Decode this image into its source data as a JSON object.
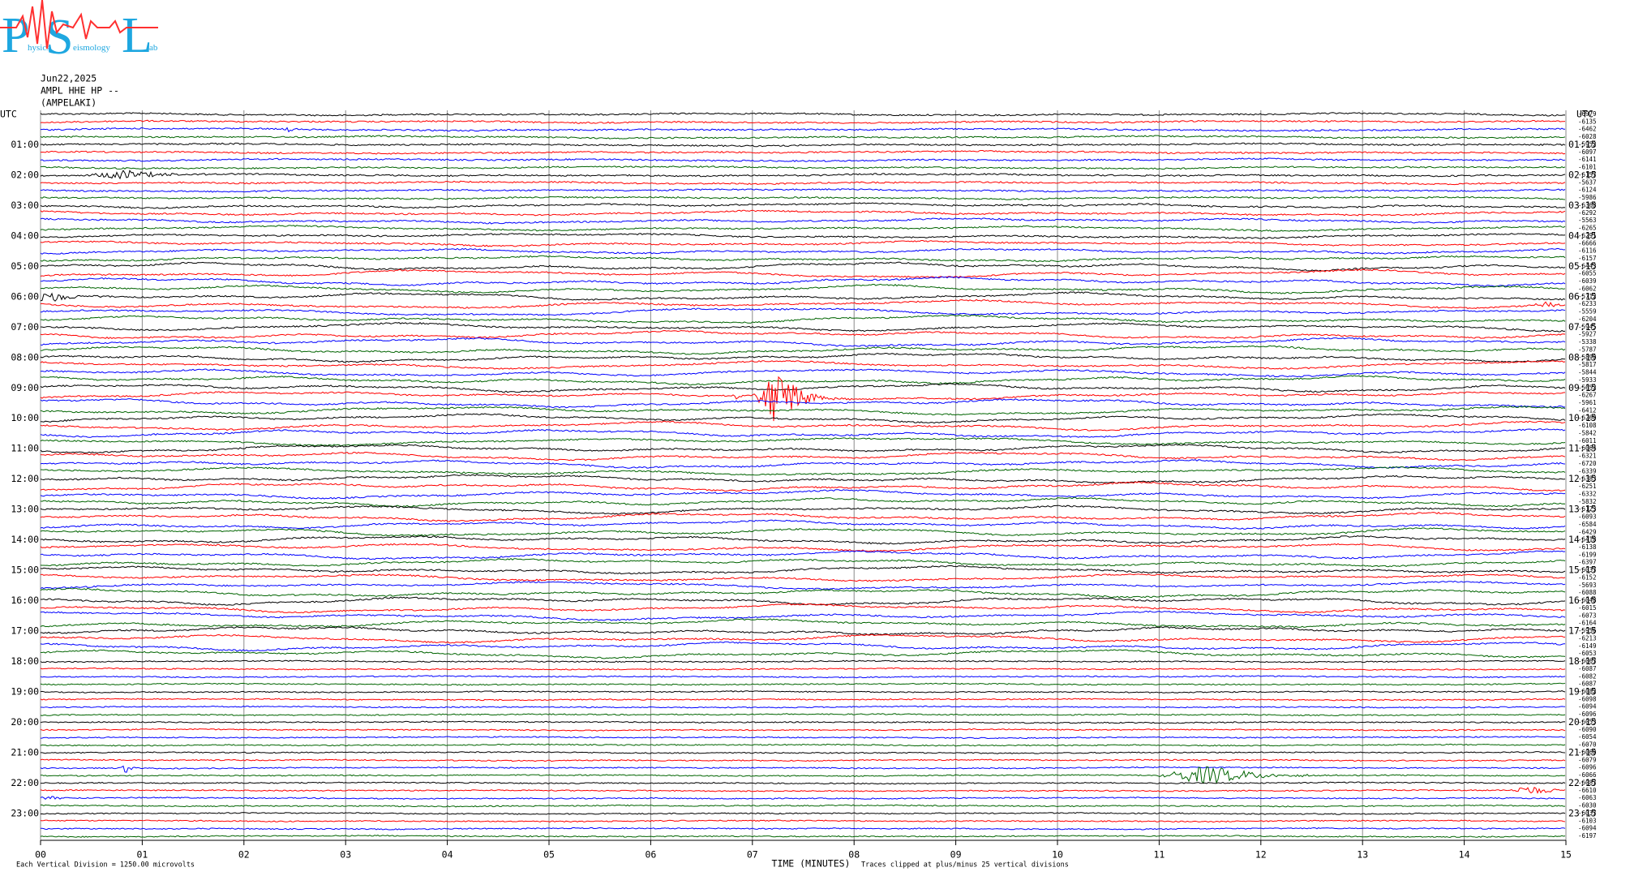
{
  "chart_data": {
    "type": "helicorder",
    "logo": {
      "letters": [
        "P",
        "S",
        "L"
      ],
      "words": [
        "hysics",
        "eismology",
        "ab"
      ]
    },
    "date": "Jun22,2025",
    "channel": "AMPL HHE HP --",
    "station": "(AMPELAKI)",
    "left_labels": [
      "UTC",
      "01:00",
      "02:00",
      "03:00",
      "04:00",
      "05:00",
      "06:00",
      "07:00",
      "08:00",
      "09:00",
      "10:00",
      "11:00",
      "12:00",
      "13:00",
      "14:00",
      "15:00",
      "16:00",
      "17:00",
      "18:00",
      "19:00",
      "20:00",
      "21:00",
      "22:00",
      "23:00"
    ],
    "right_labels": [
      "UTC",
      "01:15",
      "02:15",
      "03:15",
      "04:15",
      "05:15",
      "06:15",
      "07:15",
      "08:15",
      "09:15",
      "10:15",
      "11:15",
      "12:15",
      "13:15",
      "14:15",
      "15:15",
      "16:15",
      "17:15",
      "18:15",
      "19:15",
      "20:15",
      "21:15",
      "22:15",
      "23:15"
    ],
    "trace_offsets": [
      -6979,
      -6135,
      -6462,
      -6028,
      -5952,
      -6097,
      -6141,
      -6101,
      -6157,
      -5637,
      -6124,
      -5986,
      -6368,
      -6292,
      -5563,
      -6265,
      -6291,
      -6666,
      -6116,
      -6157,
      -6443,
      -6055,
      -6039,
      -6062,
      -5712,
      -6233,
      -5559,
      -6204,
      -5945,
      -5927,
      -5338,
      -5787,
      -5890,
      -5817,
      -5844,
      -5933,
      -5652,
      -6267,
      -5961,
      -6412,
      -6260,
      -6108,
      -5842,
      -6011,
      -6064,
      -6321,
      -6720,
      -6339,
      -6383,
      -6251,
      -6332,
      -5832,
      -6123,
      -6093,
      -6584,
      -6429,
      -6418,
      -6138,
      -6199,
      -6397,
      -6037,
      -6152,
      -5693,
      -6088,
      -6048,
      -6015,
      -6073,
      -6164,
      -5956,
      -6213,
      -6149,
      -6053,
      -6067,
      -6087,
      -6082,
      -6087,
      -6082,
      -6098,
      -6094,
      -6096,
      -6053,
      -6090,
      -6054,
      -6070,
      -6060,
      -6079,
      -6096,
      -6066,
      -6087,
      -6610,
      -6063,
      -6030,
      -6037,
      -6103,
      -6094,
      -6197
    ],
    "trace_colors": [
      "#000000",
      "#ff0000",
      "#0000ff",
      "#006400"
    ],
    "xlim": [
      0,
      15
    ],
    "xticks": [
      {
        "value": 0,
        "label": "00"
      },
      {
        "value": 1,
        "label": "01"
      },
      {
        "value": 2,
        "label": "02"
      },
      {
        "value": 3,
        "label": "03"
      },
      {
        "value": 4,
        "label": "04"
      },
      {
        "value": 5,
        "label": "05"
      },
      {
        "value": 6,
        "label": "06"
      },
      {
        "value": 7,
        "label": "07"
      },
      {
        "value": 8,
        "label": "08"
      },
      {
        "value": 9,
        "label": "09"
      },
      {
        "value": 10,
        "label": "10"
      },
      {
        "value": 11,
        "label": "11"
      },
      {
        "value": 12,
        "label": "12"
      },
      {
        "value": 13,
        "label": "13"
      },
      {
        "value": 14,
        "label": "14"
      },
      {
        "value": 15,
        "label": "15"
      }
    ],
    "xlabel": "TIME (MINUTES)",
    "scale_note": "Each Vertical Division = 1250.00 microvolts",
    "clip_note": "Traces clipped at plus/minus 25 vertical divisions",
    "grid": true
  }
}
